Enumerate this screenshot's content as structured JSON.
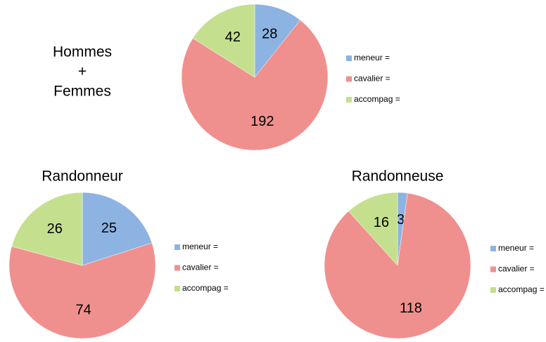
{
  "chart_data": [
    {
      "type": "pie",
      "title": [
        "Hommes",
        "+",
        "Femmes"
      ],
      "categories": [
        "meneur =",
        "cavalier =",
        "accompag ="
      ],
      "values": [
        28,
        192,
        42
      ],
      "colors": [
        "#8db3e2",
        "#f0908e",
        "#c4e08e"
      ]
    },
    {
      "type": "pie",
      "title": [
        "Randonneur"
      ],
      "categories": [
        "meneur =",
        "cavalier =",
        "accompag ="
      ],
      "values": [
        25,
        74,
        26
      ],
      "colors": [
        "#8db3e2",
        "#f0908e",
        "#c4e08e"
      ]
    },
    {
      "type": "pie",
      "title": [
        "Randonneuse"
      ],
      "categories": [
        "meneur =",
        "cavalier =",
        "accompag ="
      ],
      "values": [
        3,
        118,
        16
      ],
      "colors": [
        "#8db3e2",
        "#f0908e",
        "#c4e08e"
      ]
    }
  ]
}
